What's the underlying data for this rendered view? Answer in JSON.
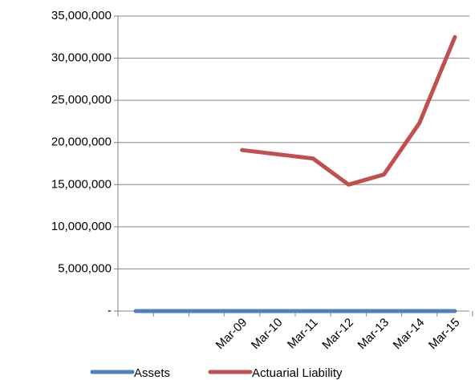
{
  "chart_data": {
    "type": "line",
    "categories": [
      null,
      null,
      null,
      "Mar-09",
      "Mar-10",
      "Mar-11",
      "Mar-12",
      "Mar-13",
      "Mar-14",
      "Mar-15"
    ],
    "series": [
      {
        "name": "Assets",
        "color": "#4f81bd",
        "values": [
          0,
          0,
          0,
          0,
          0,
          0,
          0,
          0,
          0,
          0
        ]
      },
      {
        "name": "Actuarial Liability",
        "color": "#c0504d",
        "values": [
          null,
          null,
          null,
          19100000,
          18600000,
          18100000,
          15000000,
          16200000,
          22300000,
          32500000
        ]
      }
    ],
    "ylim": [
      0,
      35000000
    ],
    "yticks": [
      {
        "value": 0,
        "label": "-"
      },
      {
        "value": 5000000,
        "label": "5,000,000"
      },
      {
        "value": 10000000,
        "label": "10,000,000"
      },
      {
        "value": 15000000,
        "label": "15,000,000"
      },
      {
        "value": 20000000,
        "label": "20,000,000"
      },
      {
        "value": 25000000,
        "label": "25,000,000"
      },
      {
        "value": 30000000,
        "label": "30,000,000"
      },
      {
        "value": 35000000,
        "label": "35,000,000"
      }
    ],
    "grid": true,
    "legend": "bottom"
  }
}
